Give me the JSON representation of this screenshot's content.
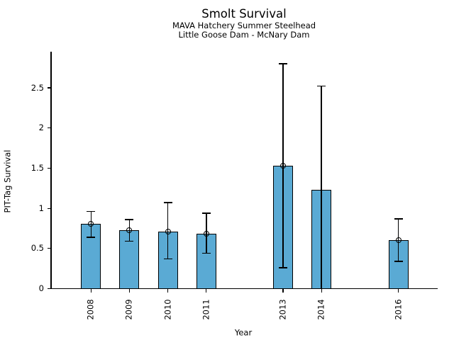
{
  "chart_data": {
    "type": "bar",
    "title": "Smolt Survival",
    "subtitle1": "MAVA Hatchery Summer Steelhead",
    "subtitle2": "Little Goose Dam - McNary Dam",
    "xlabel": "Year",
    "ylabel": "PIT-Tag Survival",
    "y_tick_labels": [
      "0",
      "0.5",
      "1",
      "1.5",
      "2",
      "2.5"
    ],
    "x_tick_labels": [
      "2008",
      "2009",
      "2010",
      "2011",
      "2013",
      "2014",
      "2016"
    ],
    "ylim": [
      0,
      2.96
    ],
    "xlim": [
      2007,
      2017
    ],
    "grid": false,
    "legend": null,
    "bar_color": "#5AAAD4",
    "edge_color": "#000000",
    "categories": [
      2008,
      2009,
      2010,
      2011,
      2013,
      2014,
      2016
    ],
    "values": [
      0.81,
      0.73,
      0.71,
      0.68,
      1.53,
      1.23,
      0.6
    ],
    "points": [
      {
        "year": 2008,
        "value": 0.81,
        "ci_low": 0.64,
        "ci_high": 0.96,
        "marker": true,
        "cap_low": true
      },
      {
        "year": 2009,
        "value": 0.73,
        "ci_low": 0.59,
        "ci_high": 0.86,
        "marker": true,
        "cap_low": true
      },
      {
        "year": 2010,
        "value": 0.71,
        "ci_low": 0.37,
        "ci_high": 1.07,
        "marker": true,
        "cap_low": true
      },
      {
        "year": 2011,
        "value": 0.68,
        "ci_low": 0.44,
        "ci_high": 0.94,
        "marker": true,
        "cap_low": true
      },
      {
        "year": 2013,
        "value": 1.53,
        "ci_low": 0.26,
        "ci_high": 2.8,
        "marker": true,
        "cap_low": true
      },
      {
        "year": 2014,
        "value": 1.23,
        "ci_low": 0.0,
        "ci_high": 2.52,
        "marker": false,
        "cap_low": false
      },
      {
        "year": 2016,
        "value": 0.6,
        "ci_low": 0.34,
        "ci_high": 0.87,
        "marker": true,
        "cap_low": true
      }
    ]
  }
}
